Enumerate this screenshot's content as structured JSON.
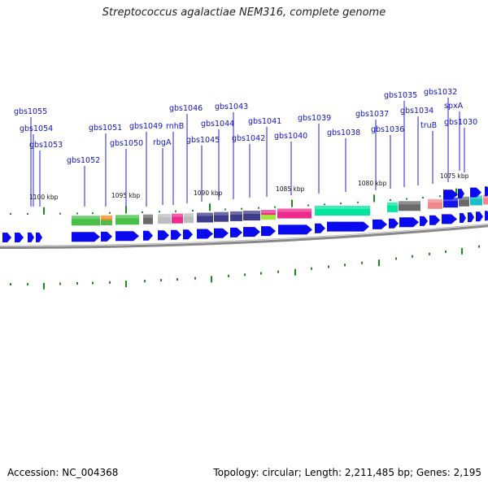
{
  "title": "Streptococcus agalactiae NEM316, complete genome",
  "footer": {
    "accession": "Accession: NC_004368",
    "summary": "Topology: circular; Length: 2,211,485 bp; Genes: 2,195"
  },
  "colors": {
    "gene_arrow": "#0a0aee",
    "label": "#1212c0",
    "tick": "#1a8c1a",
    "backbone": "#888888"
  },
  "gene_labels": [
    "gbs1055",
    "gbs1054",
    "gbs1053",
    "gbs1052",
    "gbs1051",
    "gbs1050",
    "gbs1049",
    "rbgA",
    "rnhB",
    "gbs1046",
    "gbs1045",
    "gbs1044",
    "gbs1043",
    "gbs1042",
    "gbs1041",
    "gbs1040",
    "gbs1039",
    "gbs1038",
    "gbs1037",
    "gbs1036",
    "gbs1035",
    "gbs1034",
    "truB",
    "gbs1032",
    "gbs1030",
    "spxA"
  ],
  "tick_labels": [
    "1100 kbp",
    "1095 kbp",
    "1090 kbp",
    "1085 kbp",
    "1080 kbp",
    "1075 kbp"
  ]
}
